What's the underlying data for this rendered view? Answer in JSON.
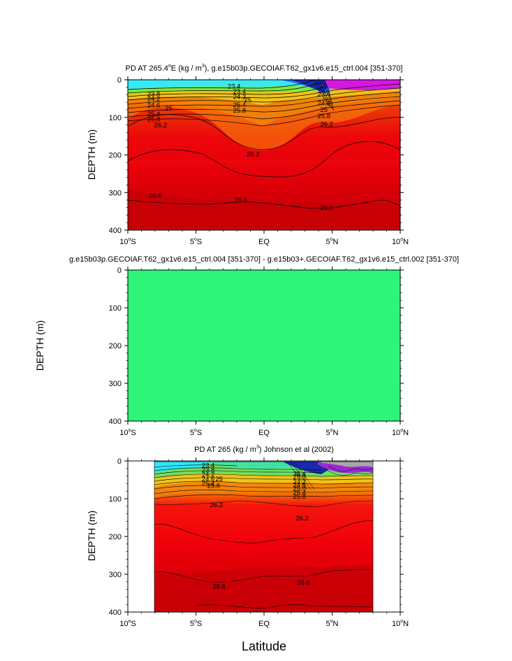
{
  "figure": {
    "xlabel": "Latitude"
  },
  "chart_data": [
    {
      "type": "heatmap",
      "title_parts": {
        "pre": "PD AT 265.4",
        "deg": "o",
        "mid": "E (kg / m",
        "sup": "3",
        "post": "), g.e15b03p.GECOIAF.T62_gx1v6.e15_ctrl.004 [351-370]"
      },
      "ylabel": "DEPTH (m)",
      "xlim": [
        -10,
        10
      ],
      "ylim": [
        400,
        0
      ],
      "x_ticks": [
        {
          "value": -10,
          "num": "10",
          "hemi": "S"
        },
        {
          "value": -5,
          "num": "5",
          "hemi": "S"
        },
        {
          "value": 0,
          "num": "EQ",
          "hemi": ""
        },
        {
          "value": 5,
          "num": "5",
          "hemi": "N"
        },
        {
          "value": 10,
          "num": "10",
          "hemi": "N"
        }
      ],
      "y_ticks": [
        0,
        100,
        200,
        300,
        400
      ],
      "data_extent": [
        -10,
        10
      ],
      "contour_labels": [
        {
          "text": "23.4",
          "x": -2.2,
          "y": 18
        },
        {
          "text": "23.8",
          "x": -8.1,
          "y": 38
        },
        {
          "text": "24.2",
          "x": -8.1,
          "y": 51
        },
        {
          "text": "24.6",
          "x": -8.1,
          "y": 68
        },
        {
          "text": "25",
          "x": -7.0,
          "y": 76
        },
        {
          "text": "25.4",
          "x": -8.1,
          "y": 91
        },
        {
          "text": "25.8",
          "x": -8.1,
          "y": 105
        },
        {
          "text": "26.2",
          "x": -7.6,
          "y": 121
        },
        {
          "text": "23.4",
          "x": -1.8,
          "y": 32
        },
        {
          "text": "24.2",
          "x": -1.8,
          "y": 46
        },
        {
          "text": "25",
          "x": -1.2,
          "y": 54
        },
        {
          "text": "25.4",
          "x": -1.8,
          "y": 67
        },
        {
          "text": "25.8",
          "x": -1.8,
          "y": 82
        },
        {
          "text": "23.4",
          "x": 4.4,
          "y": 38
        },
        {
          "text": "24.2",
          "x": 4.4,
          "y": 62
        },
        {
          "text": "25",
          "x": 4.4,
          "y": 80
        },
        {
          "text": "25.8",
          "x": 4.4,
          "y": 97
        },
        {
          "text": "26.2",
          "x": 4.6,
          "y": 118
        },
        {
          "text": "26.2",
          "x": -0.8,
          "y": 198
        },
        {
          "text": "26.6",
          "x": -8.0,
          "y": 308
        },
        {
          "text": "26.6",
          "x": -1.7,
          "y": 320
        },
        {
          "text": "26.6",
          "x": 4.6,
          "y": 340
        }
      ]
    },
    {
      "type": "heatmap",
      "title_parts": {
        "pre": "g.e15b03p.GECOIAF.T62_gx1v6.e15_ctrl.004 [351-370] - g.e15b03+.GECOIAF.T62_gx1v6.e15_ctrl.002 [351-370]",
        "deg": "",
        "mid": "",
        "sup": "",
        "post": ""
      },
      "ylabel": "DEPTH (m)",
      "xlim": [
        -10,
        10
      ],
      "ylim": [
        400,
        0
      ],
      "x_ticks": [
        {
          "value": -10,
          "num": "10",
          "hemi": "S"
        },
        {
          "value": -5,
          "num": "5",
          "hemi": "S"
        },
        {
          "value": 0,
          "num": "EQ",
          "hemi": ""
        },
        {
          "value": 5,
          "num": "5",
          "hemi": "N"
        },
        {
          "value": 10,
          "num": "10",
          "hemi": "N"
        }
      ],
      "y_ticks": [
        0,
        100,
        200,
        300,
        400
      ],
      "uniform_color": "#2ef57a",
      "contour_labels": []
    },
    {
      "type": "heatmap",
      "title_parts": {
        "pre": "PD AT 265 (kg / m",
        "deg": "",
        "mid": "",
        "sup": "3",
        "post": ") Johnson et al (2002)"
      },
      "ylabel": "DEPTH (m)",
      "xlim": [
        -10,
        10
      ],
      "ylim": [
        400,
        0
      ],
      "x_ticks": [
        {
          "value": -10,
          "num": "10",
          "hemi": "S"
        },
        {
          "value": -5,
          "num": "5",
          "hemi": "S"
        },
        {
          "value": 0,
          "num": "EQ",
          "hemi": ""
        },
        {
          "value": 5,
          "num": "5",
          "hemi": "N"
        },
        {
          "value": 10,
          "num": "10",
          "hemi": "N"
        }
      ],
      "y_ticks": [
        0,
        100,
        200,
        300,
        400
      ],
      "data_extent": [
        -8,
        8
      ],
      "contour_labels": [
        {
          "text": "23.4",
          "x": -4.1,
          "y": 12
        },
        {
          "text": "23.8",
          "x": -4.1,
          "y": 24
        },
        {
          "text": "24.2",
          "x": -4.1,
          "y": 36
        },
        {
          "text": "24.6",
          "x": -4.1,
          "y": 48
        },
        {
          "text": "25",
          "x": -3.3,
          "y": 48
        },
        {
          "text": "25.4",
          "x": -4.1,
          "y": 60
        },
        {
          "text": "25.8",
          "x": -3.7,
          "y": 66
        },
        {
          "text": "25.4",
          "x": 2.6,
          "y": 34
        },
        {
          "text": "25.8",
          "x": 2.6,
          "y": 42
        },
        {
          "text": "24.2",
          "x": 2.6,
          "y": 56
        },
        {
          "text": "24.6",
          "x": 2.6,
          "y": 64
        },
        {
          "text": "25.0",
          "x": 2.6,
          "y": 73
        },
        {
          "text": "25.4",
          "x": 2.6,
          "y": 84
        },
        {
          "text": "25.8",
          "x": 2.6,
          "y": 94
        },
        {
          "text": "26.2",
          "x": -3.5,
          "y": 117
        },
        {
          "text": "26.2",
          "x": 2.8,
          "y": 152
        },
        {
          "text": "26.6",
          "x": -3.3,
          "y": 332
        },
        {
          "text": "26.6",
          "x": 2.9,
          "y": 322
        }
      ]
    }
  ]
}
